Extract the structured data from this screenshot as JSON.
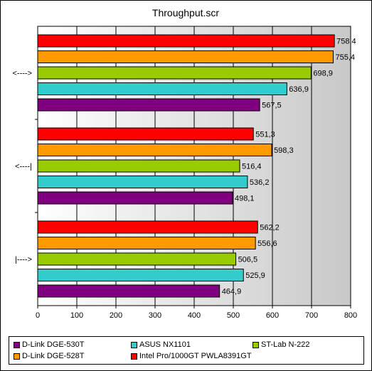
{
  "chart_data": {
    "type": "bar",
    "orientation": "horizontal",
    "title": "Throughput.scr",
    "categories": [
      "<---->",
      "<----|",
      "|---->"
    ],
    "x_ticks": [
      "0",
      "100",
      "200",
      "300",
      "400",
      "500",
      "600",
      "700",
      "800"
    ],
    "xlim": [
      0,
      800
    ],
    "grid": true,
    "legend_position": "bottom",
    "series": [
      {
        "name": "D-Link DGE-530T",
        "color": "#800080",
        "values": [
          567.5,
          498.1,
          464.9
        ],
        "labels": [
          "567,5",
          "498,1",
          "464,9"
        ]
      },
      {
        "name": "ASUS NX1101",
        "color": "#33cccc",
        "values": [
          636.9,
          536.2,
          525.9
        ],
        "labels": [
          "636,9",
          "536,2",
          "525,9"
        ]
      },
      {
        "name": "ST-Lab N-222",
        "color": "#99cc00",
        "values": [
          698.9,
          516.4,
          506.5
        ],
        "labels": [
          "698,9",
          "516,4",
          "506,5"
        ]
      },
      {
        "name": "D-Link DGE-528T",
        "color": "#ff9900",
        "values": [
          755.4,
          598.3,
          556.6
        ],
        "labels": [
          "755,4",
          "598,3",
          "556,6"
        ]
      },
      {
        "name": "Intel Pro/1000GT PWLA8391GT",
        "color": "#ff0000",
        "values": [
          758.4,
          551.3,
          562.2
        ],
        "labels": [
          "758,4",
          "551,3",
          "562,2"
        ]
      }
    ]
  }
}
